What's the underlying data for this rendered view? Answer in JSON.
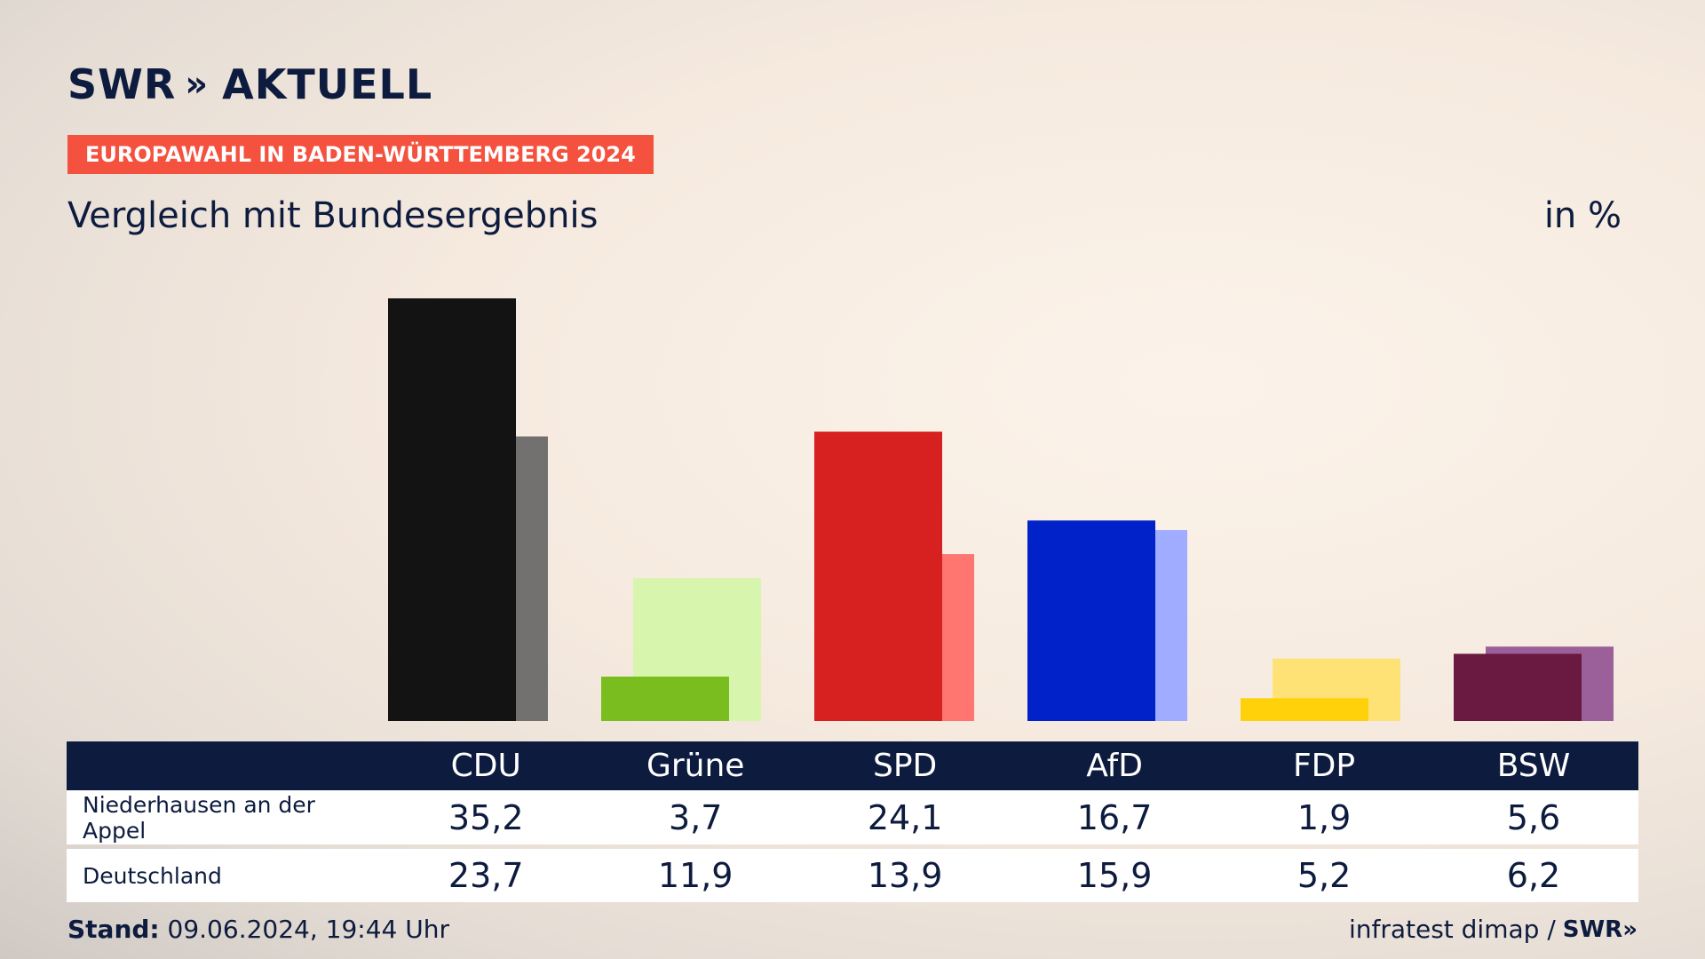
{
  "brand": {
    "logo_text": "SWR",
    "logo_chevrons": "»",
    "logo_suffix": "AKTUELL"
  },
  "banner": "EUROPAWAHL IN BADEN-WÜRTTEMBERG 2024",
  "subtitle": "Vergleich mit Bundesergebnis",
  "unit": "in %",
  "chart_data": {
    "type": "bar",
    "categories": [
      "CDU",
      "Grüne",
      "SPD",
      "AfD",
      "FDP",
      "BSW"
    ],
    "series": [
      {
        "name": "Niederhausen an der Appel",
        "values": [
          35.2,
          3.7,
          24.1,
          16.7,
          1.9,
          5.6
        ]
      },
      {
        "name": "Deutschland",
        "values": [
          23.7,
          11.9,
          13.9,
          15.9,
          5.2,
          6.2
        ]
      }
    ],
    "ylim": [
      0,
      35.2
    ],
    "colors_primary": [
      "#131313",
      "#79be1e",
      "#d72020",
      "#0022c8",
      "#ffd10a",
      "#6a1a40"
    ],
    "colors_secondary": [
      "#727170",
      "#d7f5ac",
      "#ff7670",
      "#a0acff",
      "#ffe276",
      "#9b5f9a"
    ]
  },
  "table": {
    "headers": [
      "CDU",
      "Grüne",
      "SPD",
      "AfD",
      "FDP",
      "BSW"
    ],
    "rows": [
      {
        "label": "Niederhausen an der Appel",
        "values": [
          "35,2",
          "3,7",
          "24,1",
          "16,7",
          "1,9",
          "5,6"
        ]
      },
      {
        "label": "Deutschland",
        "values": [
          "23,7",
          "11,9",
          "13,9",
          "15,9",
          "5,2",
          "6,2"
        ]
      }
    ]
  },
  "footer": {
    "stand_label": "Stand:",
    "stand_value": "09.06.2024, 19:44 Uhr",
    "source": "infratest dimap /",
    "source_logo": "SWR»"
  }
}
